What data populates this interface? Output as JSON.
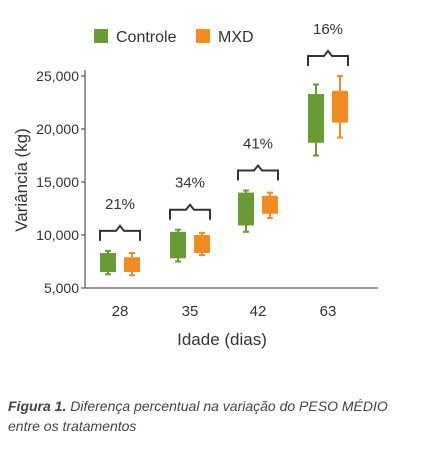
{
  "chart_data": {
    "type": "box",
    "title": "",
    "xlabel": "Idade (dias)",
    "ylabel": "Variância (kg)",
    "categories": [
      "28",
      "35",
      "42",
      "63"
    ],
    "ylim": [
      5000,
      25000
    ],
    "yticks": [
      5000,
      10000,
      15000,
      20000,
      25000
    ],
    "ytick_labels": [
      "5,000",
      "10,000",
      "15,000",
      "20,000",
      "25,000"
    ],
    "grid": false,
    "legend_position": "top-center",
    "series": [
      {
        "name": "Controle",
        "color": "#6a9a35",
        "boxes": [
          {
            "min": 6300,
            "q1": 6500,
            "median": 7300,
            "q3": 8300,
            "max": 8500
          },
          {
            "min": 7500,
            "q1": 7800,
            "median": 9000,
            "q3": 10300,
            "max": 10500
          },
          {
            "min": 10300,
            "q1": 10900,
            "median": 12300,
            "q3": 14000,
            "max": 14200
          },
          {
            "min": 17500,
            "q1": 18700,
            "median": 21000,
            "q3": 23300,
            "max": 24200
          }
        ]
      },
      {
        "name": "MXD",
        "color": "#f08c23",
        "boxes": [
          {
            "min": 6200,
            "q1": 6500,
            "median": 7300,
            "q3": 7900,
            "max": 8300
          },
          {
            "min": 8100,
            "q1": 8300,
            "median": 9300,
            "q3": 10000,
            "max": 10200
          },
          {
            "min": 11600,
            "q1": 12000,
            "median": 13000,
            "q3": 13700,
            "max": 14000
          },
          {
            "min": 19200,
            "q1": 20600,
            "median": 22000,
            "q3": 23600,
            "max": 25000
          }
        ]
      }
    ],
    "annotations": [
      "21%",
      "34%",
      "41%",
      "16%"
    ]
  },
  "caption": {
    "label": "Figura 1.",
    "text": " Diferença percentual na variação do PESO MÉDIO entre os tratamentos"
  }
}
